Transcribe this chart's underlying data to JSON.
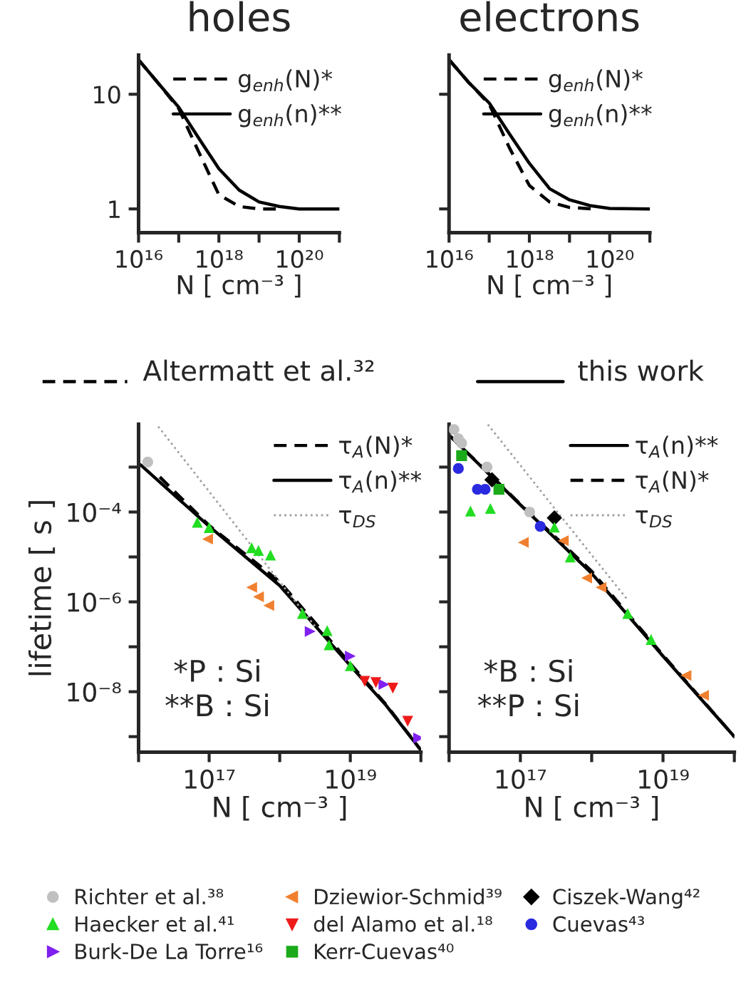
{
  "chart_data": [
    {
      "type": "line",
      "title": "holes",
      "xlabel": "N [ cm⁻³ ]",
      "log": "xy",
      "legend": "top right",
      "grid": false,
      "xlim": [
        1e+16,
        1e+21
      ],
      "ylim": [
        0.62,
        22
      ],
      "xticks": [
        {
          "value": 1e+16,
          "label": "10¹⁶"
        },
        {
          "value": 1e+17,
          "label": null
        },
        {
          "value": 1e+18,
          "label": "10¹⁸"
        },
        {
          "value": 1e+19,
          "label": null
        },
        {
          "value": 1e+20,
          "label": "10²⁰"
        },
        {
          "value": 1e+21,
          "label": null
        }
      ],
      "yticks": [
        1,
        10
      ],
      "series": [
        {
          "name": "g$_{enh}$(N)*",
          "type": "line",
          "line_style": "dashed",
          "color": "#000000",
          "x": [
            1e+16,
            3.2e+16,
            1e+17,
            3.2e+17,
            1e+18,
            3.2e+18,
            1e+19,
            4e+19
          ],
          "values": [
            20,
            12.3,
            7.5,
            3.1,
            1.33,
            1.05,
            1.0,
            1.0
          ]
        },
        {
          "name": "g$_{enh}$(n)**",
          "type": "line",
          "line_style": "solid",
          "color": "#000000",
          "x": [
            1e+16,
            3.2e+16,
            1e+17,
            3.2e+17,
            1e+18,
            3.2e+18,
            1e+19,
            3.2e+19,
            1e+20,
            1e+21
          ],
          "values": [
            20,
            12.3,
            7.7,
            4.1,
            2.24,
            1.46,
            1.15,
            1.05,
            1.0,
            1.0
          ]
        }
      ]
    },
    {
      "type": "line",
      "title": "electrons",
      "xlabel": "N [ cm⁻³ ]",
      "log": "xy",
      "legend": "top right",
      "grid": false,
      "xlim": [
        1e+16,
        1e+21
      ],
      "ylim": [
        0.62,
        22
      ],
      "xticks": [
        {
          "value": 1e+16,
          "label": "10¹⁶"
        },
        {
          "value": 1e+17,
          "label": null
        },
        {
          "value": 1e+18,
          "label": "10¹⁸"
        },
        {
          "value": 1e+19,
          "label": null
        },
        {
          "value": 1e+20,
          "label": "10²⁰"
        },
        {
          "value": 1e+21,
          "label": null
        }
      ],
      "yticks": [
        1,
        10
      ],
      "tick_labels": "x",
      "series": [
        {
          "name": "g$_{enh}$(N)*",
          "type": "line",
          "line_style": "dashed",
          "color": "#000000",
          "x": [
            1e+16,
            3.2e+16,
            1e+17,
            3.2e+17,
            1e+18,
            3.2e+18,
            1e+19,
            4e+19
          ],
          "values": [
            20,
            12.5,
            8.2,
            3.4,
            1.6,
            1.15,
            1.03,
            1.0
          ]
        },
        {
          "name": "g$_{enh}$(n)**",
          "type": "line",
          "line_style": "solid",
          "color": "#000000",
          "x": [
            1e+16,
            3.2e+16,
            1e+17,
            3.2e+17,
            1e+18,
            3.2e+18,
            1e+19,
            3.2e+19,
            1e+20,
            1e+21
          ],
          "values": [
            20,
            12.5,
            8.4,
            4.5,
            2.5,
            1.5,
            1.2,
            1.07,
            1.01,
            1.0
          ]
        }
      ]
    },
    {
      "type": "line",
      "title": "Altermatt et al.³²",
      "xlabel": "N [ cm⁻³ ]",
      "ylabel": "lifetime [ s ]",
      "log": "xy",
      "legend": "bottom",
      "grid": false,
      "xlim": [
        1e+16,
        1e+20
      ],
      "ylim": [
        4.5e-10,
        0.009
      ],
      "xticks": [
        {
          "value": 1e+16,
          "label": null
        },
        {
          "value": 1e+17,
          "label": "10¹⁷"
        },
        {
          "value": 1e+18,
          "label": null
        },
        {
          "value": 1e+19,
          "label": "10¹⁹"
        },
        {
          "value": 1e+20,
          "label": null
        }
      ],
      "yticks": [
        {
          "value": 1e-09,
          "label": null
        },
        {
          "value": 1e-08,
          "label": "10⁻⁸"
        },
        {
          "value": 1e-07,
          "label": null
        },
        {
          "value": 1e-06,
          "label": "10⁻⁶"
        },
        {
          "value": 1e-05,
          "label": null
        },
        {
          "value": 0.0001,
          "label": "10⁻⁴"
        },
        {
          "value": 0.001,
          "label": null
        }
      ],
      "annotations": [
        "*P : Si",
        "**B : Si"
      ],
      "series": [
        {
          "name": "τ$_{A}$(N)*",
          "type": "line",
          "line_style": "dashed",
          "color": "#000000",
          "x": [
            2e+16,
            1e+17,
            1e+18,
            1e+19,
            3.2e+19,
            1e+20
          ],
          "values": [
            0.0006,
            5e-05,
            2.8e-06,
            4.2e-08,
            5.2e-09,
            5e-10
          ]
        },
        {
          "name": "τ$_{A}$(n)**",
          "type": "line",
          "line_style": "solid",
          "color": "#000000",
          "x": [
            1.07e+16,
            1e+17,
            1e+18,
            1e+19,
            3.2e+19,
            1e+20
          ],
          "values": [
            0.00112,
            4.8e-05,
            2.3e-06,
            3.8e-08,
            5e-09,
            5e-10
          ]
        },
        {
          "name": "τ$_{DS}$",
          "type": "line",
          "line_style": "dotted",
          "color": "#a0a0a0",
          "x": [
            1.9e+16,
            1e+18,
            3.2e+18
          ],
          "values": [
            0.008,
            2.8e-06,
            2.8e-07
          ]
        },
        {
          "name": "Richter et al.³⁸",
          "type": "scatter",
          "marker": "circle",
          "color": "#c0c0c0",
          "x": [
            1.35e+16
          ],
          "values": [
            0.0013
          ]
        },
        {
          "name": "Haecker et al.⁴¹",
          "type": "scatter",
          "marker": "triangle",
          "color": "#22dd22",
          "x": [
            6.8e+16,
            1e+17,
            4e+17,
            5e+17,
            7.4e+17,
            2.1e+18,
            4.7e+18,
            5e+18,
            1e+19
          ],
          "values": [
            5.9e-05,
            4.5e-05,
            1.6e-05,
            1.4e-05,
            1.1e-05,
            5.5e-07,
            2.3e-07,
            1.1e-07,
            3.8e-08
          ]
        },
        {
          "name": "Burk-De La Torre¹⁶",
          "type": "scatter",
          "marker": "triangle_right",
          "color": "#8020f0",
          "x": [
            2.7e+18,
            1e+19,
            3e+19,
            9.3e+19
          ],
          "values": [
            2.2e-07,
            6.2e-08,
            1.45e-08,
            9.3e-10
          ]
        },
        {
          "name": "Dziewior-Schmid³⁹",
          "type": "scatter",
          "marker": "triangle_left",
          "color": "#f08030",
          "x": [
            9.5e+16,
            4e+17,
            5e+17,
            7e+17
          ],
          "values": [
            2.5e-05,
            2.1e-06,
            1.3e-06,
            8.3e-07
          ]
        },
        {
          "name": "del Alamo et al.¹⁸",
          "type": "scatter",
          "marker": "triangle_down",
          "color": "#ee1a1a",
          "x": [
            1.6e+19,
            2.3e+19,
            4e+19,
            6.5e+19
          ],
          "values": [
            1.7e-08,
            1.6e-08,
            1.2e-08,
            2.2e-09
          ]
        }
      ]
    },
    {
      "type": "line",
      "title": "this work",
      "xlabel": "N [ cm⁻³ ]",
      "log": "xy",
      "legend": "bottom",
      "grid": false,
      "tick_labels": "x",
      "xlim": [
        1e+16,
        1e+20
      ],
      "ylim": [
        4.5e-10,
        0.009
      ],
      "xticks": [
        {
          "value": 1e+16,
          "label": null
        },
        {
          "value": 1e+17,
          "label": "10¹⁷"
        },
        {
          "value": 1e+18,
          "label": null
        },
        {
          "value": 1e+19,
          "label": "10¹⁹"
        },
        {
          "value": 1e+20,
          "label": null
        }
      ],
      "yticks": [
        {
          "value": 1e-09,
          "label": null
        },
        {
          "value": 1e-08,
          "label": null
        },
        {
          "value": 1e-07,
          "label": null
        },
        {
          "value": 1e-06,
          "label": null
        },
        {
          "value": 1e-05,
          "label": null
        },
        {
          "value": 0.0001,
          "label": null
        },
        {
          "value": 0.001,
          "label": null
        }
      ],
      "annotations": [
        "*B : Si",
        "**P : Si"
      ],
      "series": [
        {
          "name": "τ$_{A}$(n)**",
          "type": "line",
          "line_style": "solid",
          "color": "#000000",
          "x": [
            1.05e+16,
            1e+17,
            1e+18,
            1e+19,
            1e+20
          ],
          "values": [
            0.0048,
            0.000145,
            4.3e-06,
            6.2e-08,
            1e-09
          ]
        },
        {
          "name": "τ$_{A}$(N)*",
          "type": "line",
          "line_style": "dashed",
          "color": "#000000",
          "x": [
            1.05e+16,
            1e+17,
            1e+18,
            1e+19,
            1e+20
          ],
          "values": [
            0.0048,
            0.00015,
            4.8e-06,
            6.5e-08,
            1e-09
          ]
        },
        {
          "name": "τ$_{DS}$",
          "type": "line",
          "line_style": "dotted",
          "color": "#a0a0a0",
          "x": [
            3.5e+16,
            1e+18,
            3.2e+18
          ],
          "values": [
            0.0089,
            1.1e-05,
            1.1e-06
          ]
        },
        {
          "name": "Kerr-Cuevas⁴⁰",
          "type": "scatter",
          "marker": "square",
          "color": "#1aaa1a",
          "x": [
            1.5e+16,
            5e+16
          ],
          "values": [
            0.0018,
            0.00032
          ]
        },
        {
          "name": "Ciszek-Wang⁴²",
          "type": "scatter",
          "marker": "diamond",
          "color": "#000000",
          "x": [
            4e+16,
            3e+17
          ],
          "values": [
            0.00052,
            7.4e-05
          ]
        },
        {
          "name": "Cuevas⁴³",
          "type": "scatter",
          "marker": "circle",
          "color": "#2a2ae0",
          "x": [
            1.35e+16,
            2.5e+16,
            3.2e+16,
            1.9e+17
          ],
          "values": [
            0.00093,
            0.00032,
            0.00032,
            4.8e-05
          ]
        },
        {
          "name": "Richter et al.³⁸",
          "type": "scatter",
          "marker": "circle",
          "color": "#c0c0c0",
          "x": [
            1.17e+16,
            1.35e+16,
            1.5e+16,
            3.4e+16,
            1.35e+17
          ],
          "values": [
            0.0069,
            0.0043,
            0.0034,
            0.001,
            0.0001
          ]
        },
        {
          "name": "Haecker et al.⁴¹",
          "type": "scatter",
          "marker": "triangle",
          "color": "#22dd22",
          "x": [
            2e+16,
            3.8e+16,
            3e+17,
            5e+17,
            3.2e+18,
            6.8e+18
          ],
          "values": [
            0.000105,
            0.00012,
            4.6e-05,
            1e-05,
            5.5e-07,
            1.45e-07
          ]
        },
        {
          "name": "Dziewior-Schmid³⁹",
          "type": "scatter",
          "marker": "triangle_left",
          "color": "#f08030",
          "x": [
            1.1e+17,
            4e+17,
            8.5e+17,
            1.35e+18,
            2.1e+19,
            3.7e+19
          ],
          "values": [
            2.1e-05,
            2.3e-05,
            3.4e-06,
            2.1e-06,
            2.3e-08,
            8.3e-09
          ]
        }
      ]
    }
  ]
}
